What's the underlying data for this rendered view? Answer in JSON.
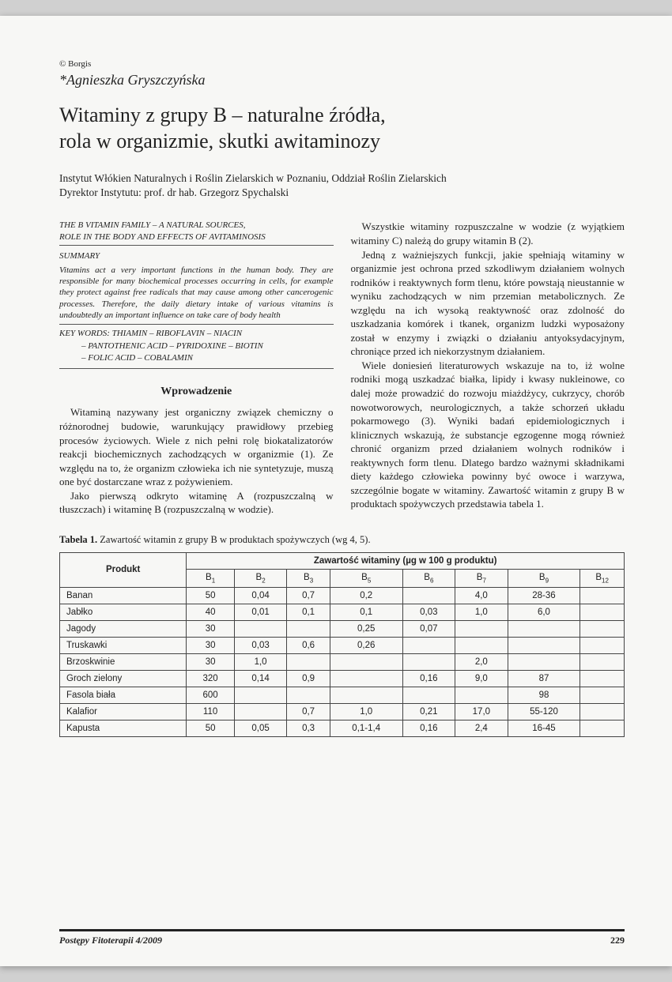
{
  "copyright": "© Borgis",
  "author": "*Agnieszka Gryszczyńska",
  "title_line1": "Witaminy z grupy B – naturalne źródła,",
  "title_line2": "rola w organizmie, skutki awitaminozy",
  "affiliation_line1": "Instytut Włókien Naturalnych i Roślin Zielarskich w Poznaniu, Oddział Roślin Zielarskich",
  "affiliation_line2": "Dyrektor Instytutu: prof. dr hab. Grzegorz Spychalski",
  "eng_title_line1": "THE B VITAMIN FAMILY – A NATURAL SOURCES,",
  "eng_title_line2": "ROLE IN THE BODY AND EFFECTS OF AVITAMINOSIS",
  "summary_label": "SUMMARY",
  "summary_text": "Vitamins act a very important functions in the human body. They are responsible for many biochemical processes occurring in cells, for example they protect against free radicals that may cause among other cancerogenic processes. Therefore, the daily dietary intake of various vitamins is undoubtedly an important influence on take care of body health",
  "keywords_line1": "KEY WORDS: THIAMIN – RIBOFLAVIN – NIACIN",
  "keywords_line2": "– PANTOTHENIC ACID – PYRIDOXINE – BIOTIN",
  "keywords_line3": "– FOLIC ACID – COBALAMIN",
  "section_heading": "Wprowadzenie",
  "left_p1": "Witaminą nazywany jest organiczny związek chemiczny o różnorodnej budowie, warunkujący prawidłowy przebieg procesów życiowych. Wiele z nich pełni rolę biokatalizatorów reakcji biochemicznych zachodzących w organizmie (1). Ze względu na to, że organizm człowieka ich nie syntetyzuje, muszą one być dostarczane wraz z pożywieniem.",
  "left_p2": "Jako pierwszą odkryto witaminę A (rozpuszczalną w tłuszczach) i witaminę B (rozpuszczalną w wodzie).",
  "right_p1": "Wszystkie witaminy rozpuszczalne w wodzie (z wyjątkiem witaminy C) należą do grupy witamin B (2).",
  "right_p2": "Jedną z ważniejszych funkcji, jakie spełniają witaminy w organizmie jest ochrona przed szkodliwym działaniem wolnych rodników i reaktywnych form tlenu, które powstają nieustannie w wyniku zachodzących w nim przemian metabolicznych. Ze względu na ich wysoką reaktywność oraz zdolność do uszkadzania komórek i tkanek, organizm ludzki wyposażony został w enzymy i związki o działaniu antyoksydacyjnym, chroniące przed ich niekorzystnym działaniem.",
  "right_p3": "Wiele doniesień literaturowych wskazuje na to, iż wolne rodniki mogą uszkadzać białka, lipidy i kwasy nukleinowe, co dalej może prowadzić do rozwoju miażdżycy, cukrzycy, chorób nowotworowych, neurologicznych, a także schorzeń układu pokarmowego (3). Wyniki badań epidemiologicznych i klinicznych wskazują, że substancje egzogenne mogą również chronić organizm przed działaniem wolnych rodników i reaktywnych form tlenu. Dlatego bardzo ważnymi składnikami diety każdego człowieka powinny być owoce i warzywa, szczególnie bogate w witaminy. Zawartość witamin z grupy B w produktach spożywczych przedstawia tabela 1.",
  "table_caption_bold": "Tabela 1.",
  "table_caption_rest": " Zawartość witamin z grupy B w produktach spożywczych (wg 4, 5).",
  "table": {
    "header_product": "Produkt",
    "header_group": "Zawartość witaminy (µg w 100 g produktu)",
    "vitamin_cols": [
      "B₁",
      "B₂",
      "B₃",
      "B₅",
      "B₆",
      "B₇",
      "B₉",
      "B₁₂"
    ],
    "rows": [
      {
        "product": "Banan",
        "cells": [
          "50",
          "0,04",
          "0,7",
          "0,2",
          "",
          "4,0",
          "28-36",
          ""
        ]
      },
      {
        "product": "Jabłko",
        "cells": [
          "40",
          "0,01",
          "0,1",
          "0,1",
          "0,03",
          "1,0",
          "6,0",
          ""
        ]
      },
      {
        "product": "Jagody",
        "cells": [
          "30",
          "",
          "",
          "0,25",
          "0,07",
          "",
          "",
          ""
        ]
      },
      {
        "product": "Truskawki",
        "cells": [
          "30",
          "0,03",
          "0,6",
          "0,26",
          "",
          "",
          "",
          ""
        ]
      },
      {
        "product": "Brzoskwinie",
        "cells": [
          "30",
          "1,0",
          "",
          "",
          "",
          "2,0",
          "",
          ""
        ]
      },
      {
        "product": "Groch zielony",
        "cells": [
          "320",
          "0,14",
          "0,9",
          "",
          "0,16",
          "9,0",
          "87",
          ""
        ]
      },
      {
        "product": "Fasola biała",
        "cells": [
          "600",
          "",
          "",
          "",
          "",
          "",
          "98",
          ""
        ]
      },
      {
        "product": "Kalafior",
        "cells": [
          "110",
          "",
          "0,7",
          "1,0",
          "0,21",
          "17,0",
          "55-120",
          ""
        ]
      },
      {
        "product": "Kapusta",
        "cells": [
          "50",
          "0,05",
          "0,3",
          "0,1-1,4",
          "0,16",
          "2,4",
          "16-45",
          ""
        ]
      }
    ]
  },
  "footer_journal": "Postępy Fitoterapii 4/2009",
  "footer_page": "229"
}
